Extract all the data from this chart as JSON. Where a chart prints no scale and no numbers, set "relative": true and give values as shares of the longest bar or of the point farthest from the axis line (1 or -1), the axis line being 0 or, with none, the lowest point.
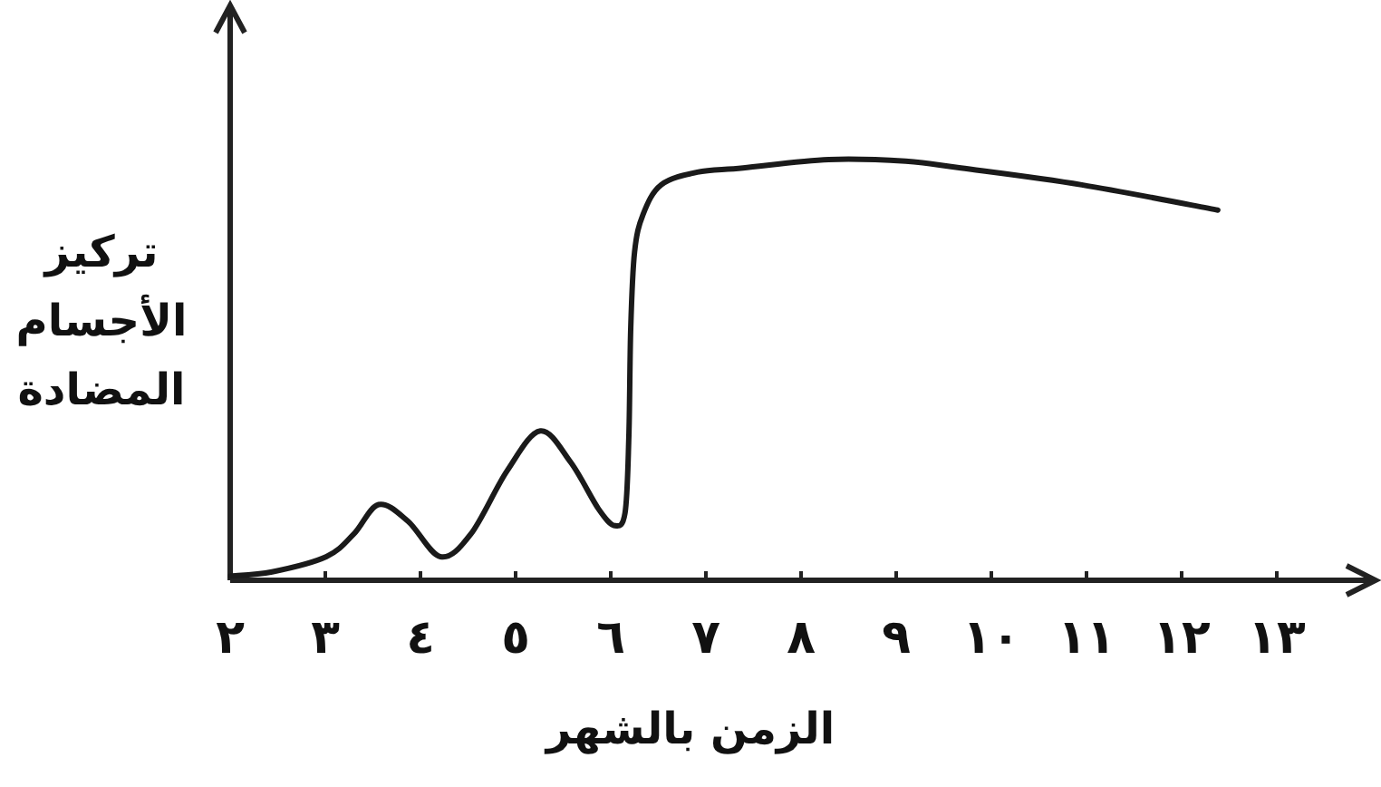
{
  "chart_data": {
    "type": "line",
    "xlabel": "الزمن بالشهر",
    "ylabel": "تركيز الأجسام المضادة",
    "relative": true,
    "color": "#1a1a1a",
    "xlim": [
      2,
      14
    ],
    "xticks": [
      {
        "value": 2,
        "label": "٢"
      },
      {
        "value": 3,
        "label": "٣"
      },
      {
        "value": 4,
        "label": "٤"
      },
      {
        "value": 5,
        "label": "٥"
      },
      {
        "value": 6,
        "label": "٦"
      },
      {
        "value": 7,
        "label": "٧"
      },
      {
        "value": 8,
        "label": "٨"
      },
      {
        "value": 9,
        "label": "٩"
      },
      {
        "value": 10,
        "label": "١٠"
      },
      {
        "value": 11,
        "label": "١١"
      },
      {
        "value": 12,
        "label": "١٢"
      },
      {
        "value": 13,
        "label": "١٣"
      }
    ],
    "x": [
      2,
      2.44,
      3.01,
      3.3,
      3.56,
      3.87,
      4.21,
      4.53,
      4.91,
      5.26,
      5.58,
      5.87,
      6.04,
      6.15,
      6.19,
      6.21,
      6.25,
      6.34,
      6.53,
      6.91,
      7.39,
      8.29,
      9.1,
      9.68,
      10.95,
      12.38
    ],
    "values": [
      0.01,
      0.02,
      0.056,
      0.11,
      0.18,
      0.14,
      0.056,
      0.11,
      0.26,
      0.355,
      0.28,
      0.17,
      0.13,
      0.16,
      0.34,
      0.6,
      0.78,
      0.87,
      0.94,
      0.97,
      0.98,
      1.0,
      0.996,
      0.98,
      0.94,
      0.88
    ]
  }
}
